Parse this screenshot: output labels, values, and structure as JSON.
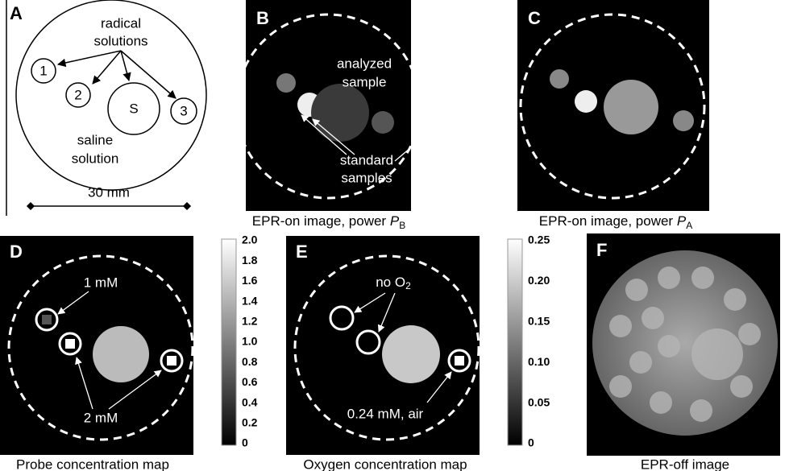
{
  "panels": [
    {
      "label": "A",
      "texts": [
        "radical",
        "solutions",
        "saline",
        "solution",
        "1",
        "2",
        "S",
        "3"
      ],
      "scale": "30 mm"
    },
    {
      "label": "B",
      "texts": [
        "analyzed",
        "sample",
        "standard",
        "samples"
      ],
      "caption": {
        "text": "EPR-on image, power",
        "symbol": "P",
        "subscript": "B"
      }
    },
    {
      "label": "C",
      "caption": {
        "text": "EPR-on image, power",
        "symbol": "P",
        "subscript": "A"
      }
    },
    {
      "label": "D",
      "texts": [
        "1 mM",
        "2 mM"
      ],
      "colorbar": [
        "2.0",
        "1.8",
        "1.6",
        "1.4",
        "1.2",
        "1.0",
        "0.8",
        "0.6",
        "0.4",
        "0.2",
        "0"
      ],
      "caption": "Probe concentration map"
    },
    {
      "label": "E",
      "texts": [
        {
          "text": "no O",
          "subscript": "2"
        },
        "0.24 mM, air"
      ],
      "colorbar": [
        "0.25",
        "0.20",
        "0.15",
        "0.10",
        "0.05",
        "0"
      ],
      "caption": "Oxygen concentration map"
    },
    {
      "label": "F",
      "caption": "EPR-off image"
    }
  ]
}
